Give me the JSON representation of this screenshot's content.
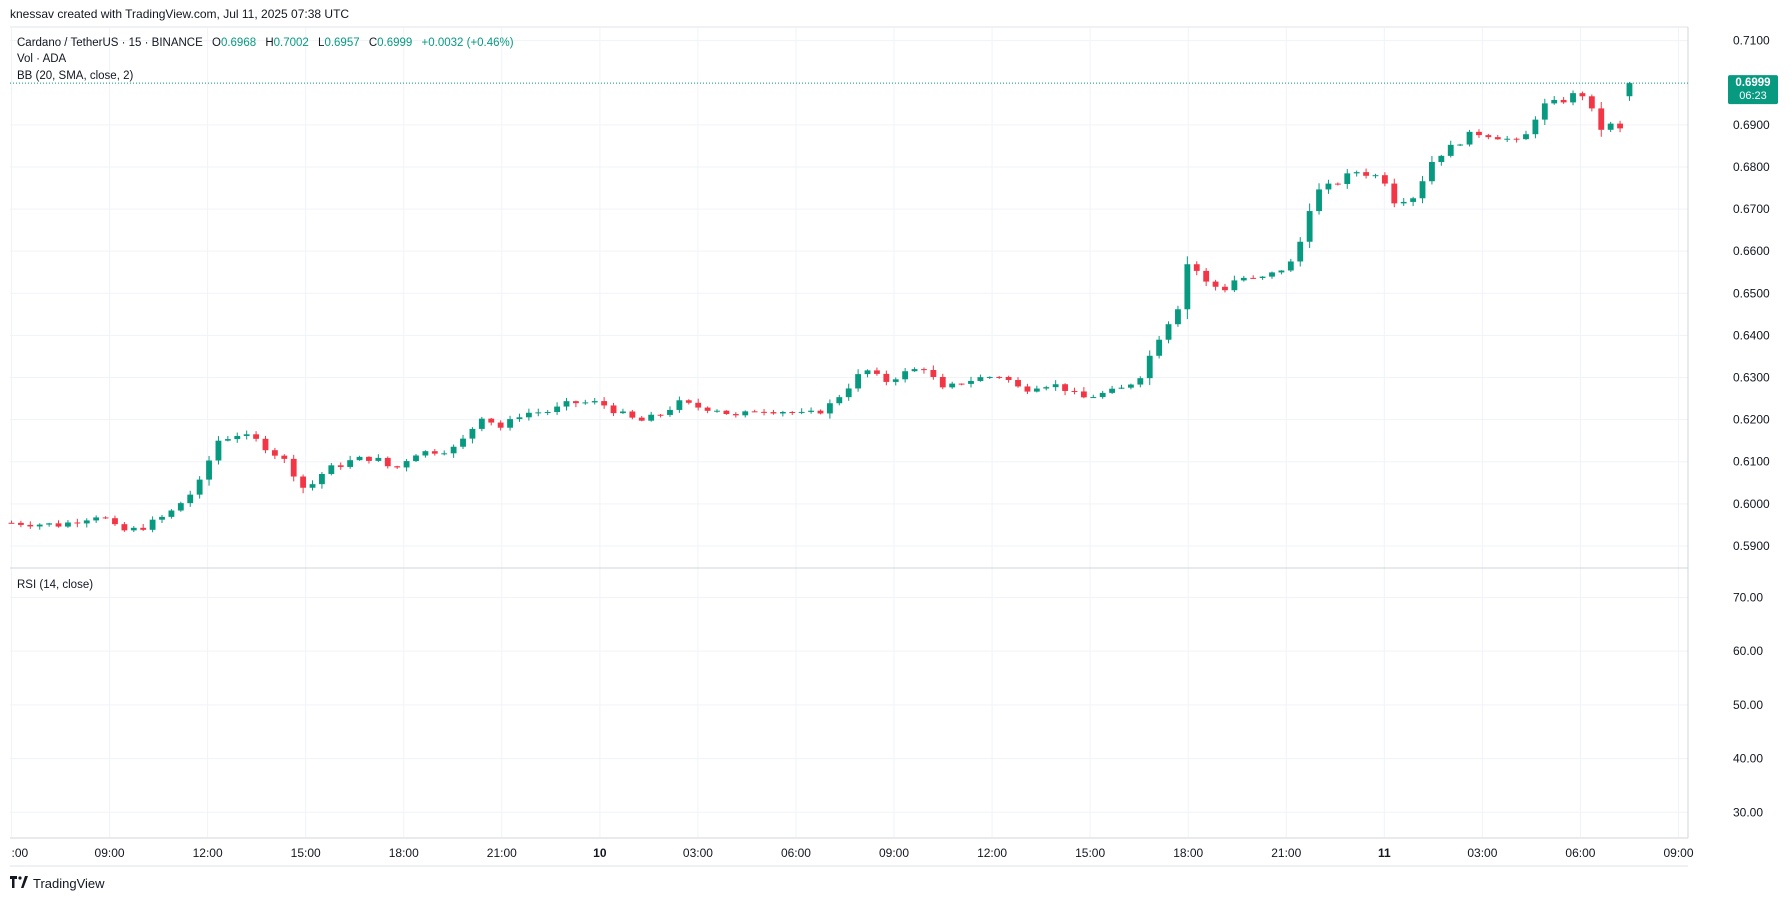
{
  "header": {
    "credit": "knessav created with TradingView.com, Jul 11, 2025 07:38 UTC"
  },
  "legend": {
    "symbol": "Cardano / TetherUS · 15 · BINANCE",
    "o_label": "O",
    "o_value": "0.6968",
    "h_label": "H",
    "h_value": "0.7002",
    "l_label": "L",
    "l_value": "0.6957",
    "c_label": "C",
    "c_value": "0.6999",
    "change": "+0.0032 (+0.46%)",
    "vol": "Vol · ADA",
    "bb": "BB (20, SMA, close, 2)",
    "rsi": "RSI (14, close)"
  },
  "price_tag": {
    "price": "0.6999",
    "countdown": "06:23"
  },
  "footer": {
    "brand": "TradingView",
    "logo": "tradingview-logo"
  },
  "colors": {
    "up": "#089981",
    "down": "#f23645",
    "grid": "#f0f3fa",
    "text": "#131722"
  },
  "chart_data": {
    "type": "candlestick",
    "interval": "15m",
    "current_price": 0.6999,
    "price_axis": {
      "min": 0.585,
      "max": 0.713,
      "ticks": [
        "0.5900",
        "0.6000",
        "0.6100",
        "0.6200",
        "0.6300",
        "0.6400",
        "0.6500",
        "0.6600",
        "0.6700",
        "0.6800",
        "0.6900",
        "0.7100"
      ]
    },
    "rsi_axis": {
      "min": 25.4,
      "max": 75.3,
      "ticks": [
        "30.00",
        "40.00",
        "50.00",
        "60.00",
        "70.00"
      ]
    },
    "time_axis": {
      "min": 0,
      "max": 170,
      "ticks": [
        {
          "t": 0,
          "label": ":00"
        },
        {
          "t": 10,
          "label": "09:00"
        },
        {
          "t": 20,
          "label": "12:00"
        },
        {
          "t": 30,
          "label": "15:00"
        },
        {
          "t": 40,
          "label": "18:00"
        },
        {
          "t": 50,
          "label": "21:00"
        },
        {
          "t": 60,
          "label": "10",
          "bold": true
        },
        {
          "t": 70,
          "label": "03:00"
        },
        {
          "t": 80,
          "label": "06:00"
        },
        {
          "t": 90,
          "label": "09:00"
        },
        {
          "t": 100,
          "label": "12:00"
        },
        {
          "t": 110,
          "label": "15:00"
        },
        {
          "t": 120,
          "label": "18:00"
        },
        {
          "t": 130,
          "label": "21:00"
        },
        {
          "t": 140,
          "label": "11",
          "bold": true
        },
        {
          "t": 150,
          "label": "03:00"
        },
        {
          "t": 160,
          "label": "06:00"
        },
        {
          "t": 170,
          "label": "09:00"
        }
      ]
    },
    "key_points": [
      [
        0,
        0.5955
      ],
      [
        5,
        0.595
      ],
      [
        9,
        0.5975
      ],
      [
        11,
        0.5935
      ],
      [
        13,
        0.594
      ],
      [
        16,
        0.5975
      ],
      [
        19,
        0.604
      ],
      [
        21,
        0.615
      ],
      [
        23,
        0.6165
      ],
      [
        25,
        0.615
      ],
      [
        28,
        0.61
      ],
      [
        30,
        0.603
      ],
      [
        32,
        0.608
      ],
      [
        35,
        0.6105
      ],
      [
        37,
        0.611
      ],
      [
        39,
        0.608
      ],
      [
        41,
        0.612
      ],
      [
        43,
        0.6125
      ],
      [
        45,
        0.613
      ],
      [
        46,
        0.615
      ],
      [
        48,
        0.621
      ],
      [
        50,
        0.618
      ],
      [
        52,
        0.6215
      ],
      [
        55,
        0.622
      ],
      [
        57,
        0.624
      ],
      [
        60,
        0.624
      ],
      [
        62,
        0.6215
      ],
      [
        64,
        0.6195
      ],
      [
        66,
        0.621
      ],
      [
        68,
        0.624
      ],
      [
        70,
        0.623
      ],
      [
        72,
        0.6225
      ],
      [
        74,
        0.6205
      ],
      [
        76,
        0.6225
      ],
      [
        79,
        0.622
      ],
      [
        81,
        0.621
      ],
      [
        83,
        0.6225
      ],
      [
        85,
        0.627
      ],
      [
        87,
        0.632
      ],
      [
        89,
        0.629
      ],
      [
        91,
        0.631
      ],
      [
        93,
        0.6325
      ],
      [
        95,
        0.627
      ],
      [
        97,
        0.629
      ],
      [
        99,
        0.63
      ],
      [
        101,
        0.6305
      ],
      [
        103,
        0.627
      ],
      [
        105,
        0.6285
      ],
      [
        107,
        0.628
      ],
      [
        109,
        0.625
      ],
      [
        111,
        0.626
      ],
      [
        113,
        0.627
      ],
      [
        115,
        0.63
      ],
      [
        117,
        0.6395
      ],
      [
        119,
        0.647
      ],
      [
        120,
        0.658
      ],
      [
        122,
        0.652
      ],
      [
        124,
        0.651
      ],
      [
        125,
        0.654
      ],
      [
        127,
        0.653
      ],
      [
        129,
        0.655
      ],
      [
        131,
        0.658
      ],
      [
        132,
        0.668
      ],
      [
        133,
        0.674
      ],
      [
        135,
        0.676
      ],
      [
        137,
        0.679
      ],
      [
        139,
        0.678
      ],
      [
        140,
        0.677
      ],
      [
        141,
        0.672
      ],
      [
        143,
        0.673
      ],
      [
        145,
        0.682
      ],
      [
        147,
        0.685
      ],
      [
        149,
        0.688
      ],
      [
        150,
        0.688
      ],
      [
        152,
        0.687
      ],
      [
        154,
        0.6855
      ],
      [
        156,
        0.6945
      ],
      [
        158,
        0.6955
      ],
      [
        160,
        0.698
      ],
      [
        161,
        0.694
      ],
      [
        162,
        0.689
      ],
      [
        163,
        0.69
      ],
      [
        164,
        0.6885
      ],
      [
        165,
        0.6968
      ]
    ],
    "last_candle": {
      "open": 0.6968,
      "high": 0.7002,
      "low": 0.6957,
      "close": 0.6999
    }
  }
}
